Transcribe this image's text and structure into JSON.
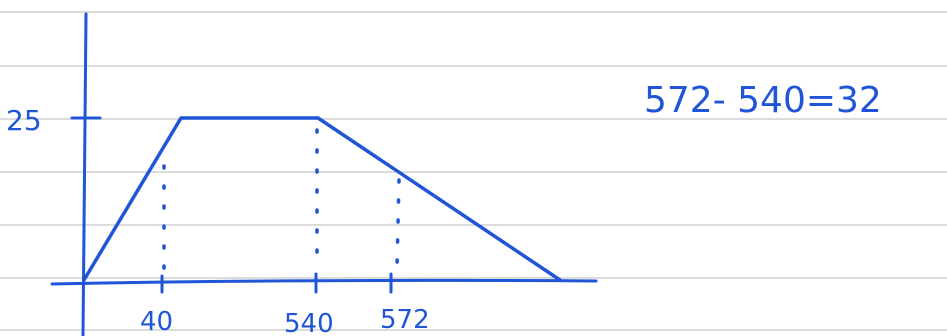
{
  "note": {
    "y_label": "25",
    "x_labels": [
      "40",
      "540",
      "572"
    ],
    "calculation": "572- 540=32"
  },
  "colors": {
    "ink": "#1f55d6",
    "ruled_lines": "#b9b9b9",
    "background": "#ffffff"
  }
}
